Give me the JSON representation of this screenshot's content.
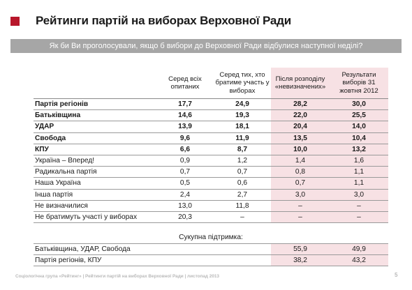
{
  "title": "Рейтинги партій на виборах Верховної Ради",
  "question": "Як би Ви проголосували, якщо б вибори до Верховної Ради відбулися наступної неділі?",
  "columns": [
    "Серед всіх опитаних",
    "Серед тих, хто братиме участь у виборах",
    "Після розподілу «невизначених»",
    "Результати виборів 31 жовтня 2012"
  ],
  "rows": [
    {
      "name": "Партія регіонів",
      "v": [
        "17,7",
        "24,9",
        "28,2",
        "30,0"
      ],
      "bold": true
    },
    {
      "name": "Батьківщина",
      "v": [
        "14,6",
        "19,3",
        "22,0",
        "25,5"
      ],
      "bold": true
    },
    {
      "name": "УДАР",
      "v": [
        "13,9",
        "18,1",
        "20,4",
        "14,0"
      ],
      "bold": true
    },
    {
      "name": "Свобода",
      "v": [
        "9,6",
        "11,9",
        "13,5",
        "10,4"
      ],
      "bold": true
    },
    {
      "name": "КПУ",
      "v": [
        "6,6",
        "8,7",
        "10,0",
        "13,2"
      ],
      "bold": true
    },
    {
      "name": "Україна – Вперед!",
      "v": [
        "0,9",
        "1,2",
        "1,4",
        "1,6"
      ],
      "bold": false
    },
    {
      "name": "Радикальна партія",
      "v": [
        "0,7",
        "0,7",
        "0,8",
        "1,1"
      ],
      "bold": false
    },
    {
      "name": "Наша Україна",
      "v": [
        "0,5",
        "0,6",
        "0,7",
        "1,1"
      ],
      "bold": false
    },
    {
      "name": "Інша партія",
      "v": [
        "2,4",
        "2,7",
        "3,0",
        "3,0"
      ],
      "bold": false
    },
    {
      "name": "Не визначилися",
      "v": [
        "13,0",
        "11,8",
        "–",
        "–"
      ],
      "bold": false
    },
    {
      "name": "Не братимуть участі у виборах",
      "v": [
        "20,3",
        "–",
        "–",
        "–"
      ],
      "bold": false
    }
  ],
  "support": {
    "caption": "Сукупна підтримка:",
    "rows": [
      {
        "name": "Батьківщина, УДАР, Свобода",
        "v": [
          "",
          "",
          "55,9",
          "49,9"
        ]
      },
      {
        "name": "Партія регіонів, КПУ",
        "v": [
          "",
          "",
          "38,2",
          "43,2"
        ]
      }
    ]
  },
  "footer": "Соціологічна група «Рейтинг» | Рейтинги партій на виборах Верховної Ради | листопад 2013",
  "page_number": "5",
  "colors": {
    "accent": "#b8172b",
    "question_bg": "#a6a6a6",
    "highlight": "#f7e1e4"
  }
}
